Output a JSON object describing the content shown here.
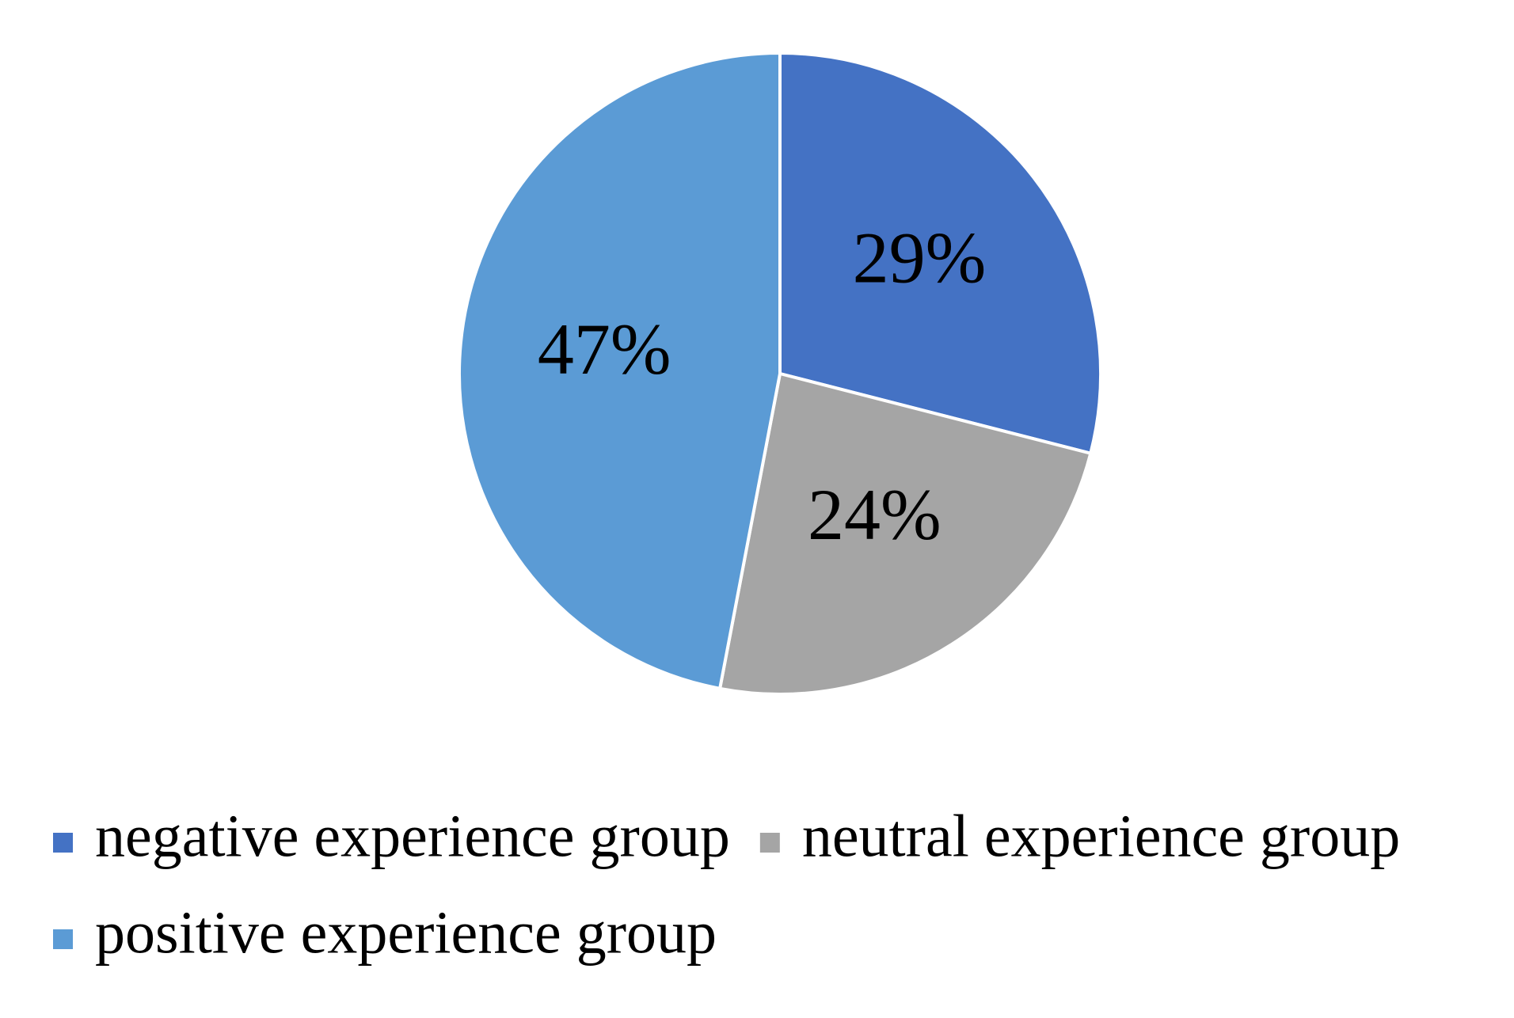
{
  "chart_data": {
    "type": "pie",
    "categories": [
      "negative experience group",
      "neutral experience group",
      "positive experience group"
    ],
    "values": [
      29,
      24,
      47
    ],
    "value_labels": [
      "29%",
      "24%",
      "47%"
    ],
    "colors": [
      "#4472c4",
      "#a5a5a5",
      "#5b9bd5"
    ],
    "legend": "bottom"
  }
}
